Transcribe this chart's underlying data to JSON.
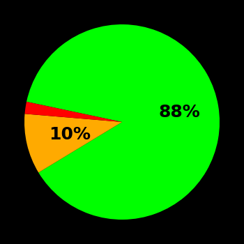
{
  "slices": [
    88,
    10,
    2
  ],
  "colors": [
    "#00ff00",
    "#ffaa00",
    "#ff0000"
  ],
  "labels": [
    "88%",
    "10%",
    ""
  ],
  "label_positions_r": [
    0.6,
    0.55,
    0.0
  ],
  "background_color": "#000000",
  "label_fontsize": 18,
  "label_fontweight": "bold",
  "startangle": 168,
  "figsize": [
    3.5,
    3.5
  ],
  "dpi": 100
}
